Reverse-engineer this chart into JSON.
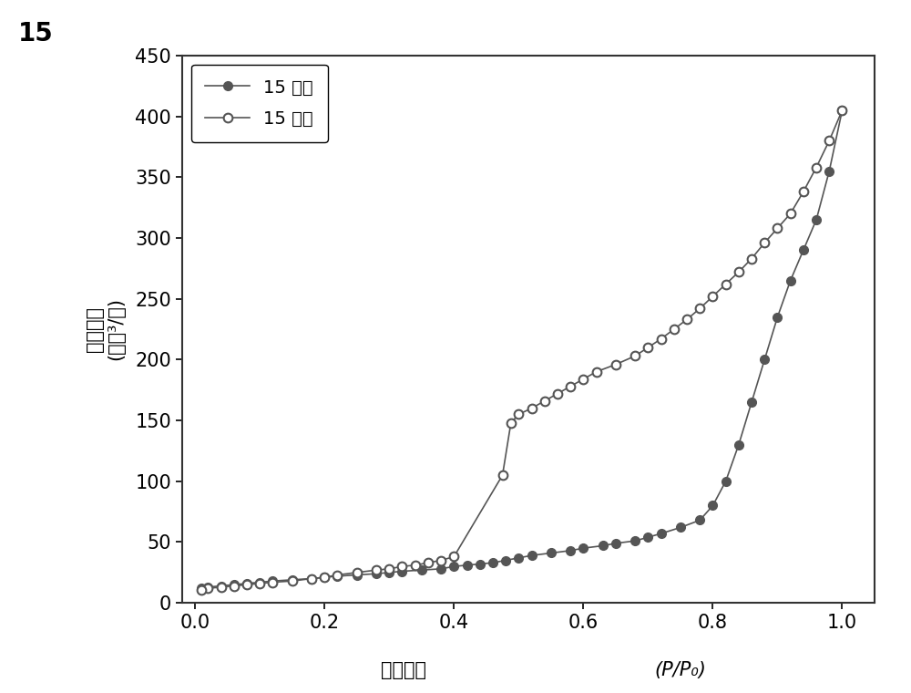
{
  "adsorption_x": [
    0.01,
    0.02,
    0.04,
    0.06,
    0.08,
    0.1,
    0.12,
    0.15,
    0.18,
    0.2,
    0.22,
    0.25,
    0.28,
    0.3,
    0.32,
    0.35,
    0.38,
    0.4,
    0.42,
    0.44,
    0.46,
    0.48,
    0.5,
    0.52,
    0.55,
    0.58,
    0.6,
    0.63,
    0.65,
    0.68,
    0.7,
    0.72,
    0.75,
    0.78,
    0.8,
    0.82,
    0.84,
    0.86,
    0.88,
    0.9,
    0.92,
    0.94,
    0.96,
    0.98,
    1.0
  ],
  "adsorption_y": [
    12,
    13,
    14,
    15,
    16,
    17,
    18,
    19,
    20,
    21,
    22,
    23,
    24,
    25,
    26,
    27,
    28,
    30,
    31,
    32,
    33,
    35,
    37,
    39,
    41,
    43,
    45,
    47,
    49,
    51,
    54,
    57,
    62,
    68,
    80,
    100,
    130,
    165,
    200,
    235,
    265,
    290,
    315,
    355,
    405
  ],
  "desorption_x": [
    1.0,
    0.98,
    0.96,
    0.94,
    0.92,
    0.9,
    0.88,
    0.86,
    0.84,
    0.82,
    0.8,
    0.78,
    0.76,
    0.74,
    0.72,
    0.7,
    0.68,
    0.65,
    0.62,
    0.6,
    0.58,
    0.56,
    0.54,
    0.52,
    0.5,
    0.488,
    0.475,
    0.4,
    0.38,
    0.36,
    0.34,
    0.32,
    0.3,
    0.28,
    0.25,
    0.22,
    0.2,
    0.18,
    0.15,
    0.12,
    0.1,
    0.08,
    0.06,
    0.04,
    0.02,
    0.01
  ],
  "desorption_y": [
    405,
    380,
    358,
    338,
    320,
    308,
    296,
    283,
    272,
    262,
    252,
    242,
    233,
    225,
    217,
    210,
    203,
    196,
    190,
    184,
    178,
    172,
    166,
    160,
    155,
    148,
    105,
    38,
    35,
    33,
    31,
    30,
    28,
    27,
    25,
    23,
    21,
    20,
    18,
    17,
    16,
    15,
    14,
    13,
    12,
    11
  ],
  "adsorption_color": "#555555",
  "desorption_color": "#555555",
  "bg_color": "#ffffff",
  "xlabel_cn": "相对压力",
  "xlabel_formula": "(P/P₀)",
  "ylabel_line1": "吸附体积",
  "ylabel_line2": "(厘米³/克)",
  "legend_adsorption": "15 吸附",
  "legend_desorption": "15 脱附",
  "figure_label": "15",
  "ylim": [
    0,
    450
  ],
  "xlim": [
    -0.02,
    1.05
  ],
  "yticks": [
    0,
    50,
    100,
    150,
    200,
    250,
    300,
    350,
    400,
    450
  ],
  "xticks": [
    0.0,
    0.2,
    0.4,
    0.6,
    0.8,
    1.0
  ]
}
